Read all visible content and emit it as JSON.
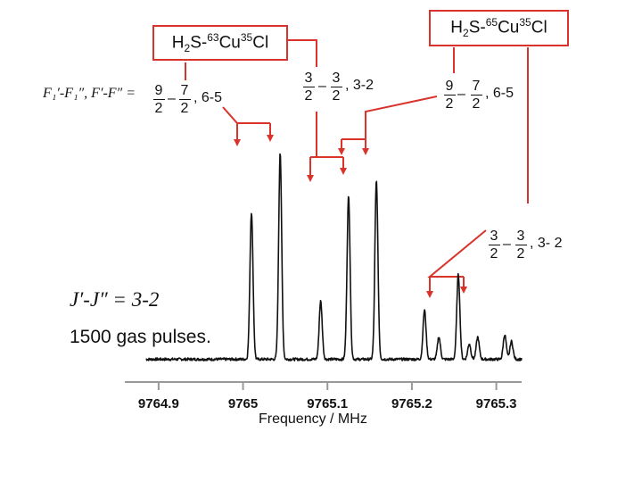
{
  "labels": {
    "quantum_label_left": "F₁′-F₁″, F′-F″ =",
    "j_transition": "J′-J″ = 3-2",
    "gas_pulses": "1500 gas pulses."
  },
  "isotopologues": [
    {
      "prefix": "H",
      "sub": "2",
      "mid": "S-",
      "sup1": "63",
      "el1": "Cu",
      "sup2": "35",
      "el2": "Cl"
    },
    {
      "prefix": "H",
      "sub": "2",
      "mid": "S-",
      "sup1": "65",
      "el1": "Cu",
      "sup2": "35",
      "el2": "Cl"
    }
  ],
  "assignments": [
    {
      "id": "a1",
      "num1": "9",
      "den1": "2",
      "op": "–",
      "num2": "7",
      "den2": "2",
      "suffix": ", 6-5"
    },
    {
      "id": "a2",
      "num1": "3",
      "den1": "2",
      "op": "–",
      "num2": "3",
      "den2": "2",
      "suffix": ", 3-2"
    },
    {
      "id": "a3",
      "num1": "9",
      "den1": "2",
      "op": "–",
      "num2": "7",
      "den2": "2",
      "suffix": ", 6-5"
    },
    {
      "id": "a4",
      "num1": "3",
      "den1": "2",
      "op": "–",
      "num2": "3",
      "den2": "2",
      "suffix": ", 3- 2"
    }
  ],
  "colors": {
    "accent": "#d9332b",
    "trace": "#111111"
  },
  "chart_data": {
    "type": "line",
    "xlabel": "Frequency / MHz",
    "ylabel": "",
    "xlim": [
      9764.86,
      9765.33
    ],
    "ylim": [
      0,
      1.0
    ],
    "x_ticks": [
      9764.9,
      9765,
      9765.1,
      9765.2,
      9765.3
    ],
    "x_tick_labels": [
      "9764.9",
      "9765",
      "9765.1",
      "9765.2",
      "9765.3"
    ],
    "baseline": 0.03,
    "peaks": [
      {
        "x": 9765.01,
        "height": 0.66
      },
      {
        "x": 9765.044,
        "height": 0.93
      },
      {
        "x": 9765.092,
        "height": 0.26
      },
      {
        "x": 9765.125,
        "height": 0.73
      },
      {
        "x": 9765.158,
        "height": 0.8
      },
      {
        "x": 9765.215,
        "height": 0.22
      },
      {
        "x": 9765.232,
        "height": 0.1
      },
      {
        "x": 9765.255,
        "height": 0.38
      },
      {
        "x": 9765.268,
        "height": 0.07
      },
      {
        "x": 9765.278,
        "height": 0.1
      },
      {
        "x": 9765.31,
        "height": 0.11
      },
      {
        "x": 9765.318,
        "height": 0.08
      }
    ]
  }
}
